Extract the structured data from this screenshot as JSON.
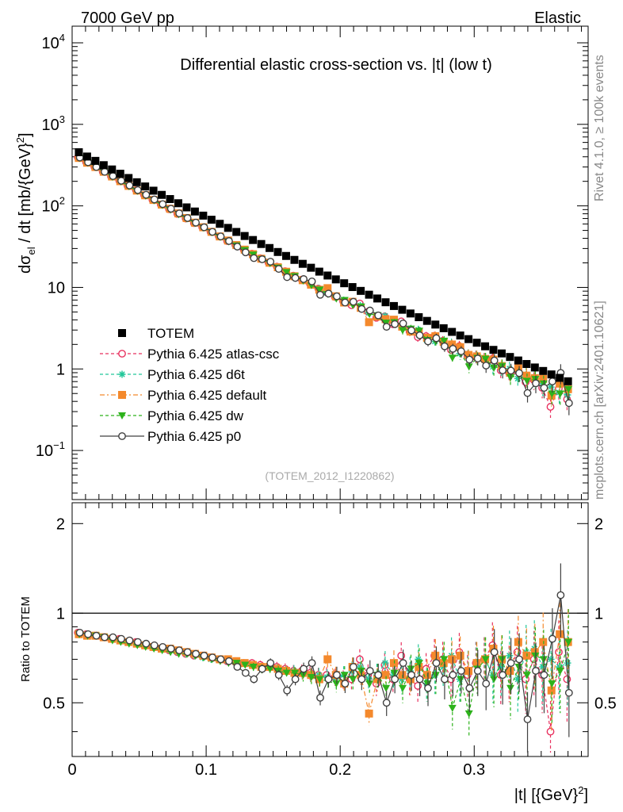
{
  "header": {
    "left": "7000 GeV pp",
    "right": "Elastic"
  },
  "side": {
    "rivet": "Rivet 4.1.0, ≥ 100k events",
    "mcplots": "mcplots.cern.ch [arXiv:2401.10621]"
  },
  "colors": {
    "totem": "#000000",
    "atlas_csc": "#e8315f",
    "d6t": "#23c79a",
    "default": "#f4892c",
    "dw": "#2db21b",
    "p0": "#404040"
  },
  "chart_data": [
    {
      "type": "scatter",
      "title": "Differential elastic cross-section vs. |t| (low t)",
      "watermark": "(TOTEM_2012_I1220862)",
      "ylabel_main": "dσ",
      "ylabel_sub": "el",
      "ylabel_rest": " / dt [mb/{GeV}",
      "ylabel_sup": "2",
      "ylabel_end": "]",
      "yscale": "log",
      "ylim": [
        0.025,
        16000
      ],
      "xlim": [
        0,
        0.385
      ],
      "ytick_labels": [
        {
          "base": "10",
          "exp": "4"
        },
        {
          "base": "10",
          "exp": "3"
        },
        {
          "base": "10",
          "exp": "2"
        },
        {
          "base": "10",
          "exp": ""
        },
        {
          "base": "1",
          "exp": ""
        },
        {
          "base": "10",
          "exp": "−1"
        }
      ],
      "legend": [
        {
          "label": "TOTEM",
          "key": "totem",
          "marker": "square-filled",
          "line": "none"
        },
        {
          "label": "Pythia 6.425 atlas-csc",
          "key": "atlas_csc",
          "marker": "circle-open",
          "line": "dashed"
        },
        {
          "label": "Pythia 6.425 d6t",
          "key": "d6t",
          "marker": "star",
          "line": "dashed"
        },
        {
          "label": "Pythia 6.425 default",
          "key": "default",
          "marker": "square-filled",
          "line": "dashdot"
        },
        {
          "label": "Pythia 6.425 dw",
          "key": "dw",
          "marker": "triangle-down",
          "line": "dashed"
        },
        {
          "label": "Pythia 6.425 p0",
          "key": "p0",
          "marker": "circle-open",
          "line": "solid"
        }
      ],
      "totem_model": {
        "A": 503,
        "B": 19.9,
        "C": 5.8,
        "t_min": 0.005,
        "t_max": 0.37,
        "n_points": 60
      },
      "mc_series": [
        {
          "key": "atlas_csc",
          "name": "Pythia 6.425 atlas-csc",
          "ratio": [
            0.86,
            0.85,
            0.84,
            0.83,
            0.82,
            0.82,
            0.8,
            0.8,
            0.78,
            0.77,
            0.76,
            0.75,
            0.74,
            0.73,
            0.72,
            0.72,
            0.71,
            0.7,
            0.69,
            0.69,
            0.68,
            0.68,
            0.67,
            0.66,
            0.66,
            0.65,
            0.64,
            0.64,
            0.63,
            0.62,
            0.62,
            0.61,
            0.6,
            0.6,
            0.7,
            0.62,
            0.58,
            0.67,
            0.6,
            0.72,
            0.6,
            0.57,
            0.65,
            0.72,
            0.7,
            0.6,
            0.74,
            0.62,
            0.68,
            0.7,
            0.78,
            0.62,
            0.64,
            0.74,
            0.6,
            0.7,
            0.62,
            0.4,
            0.74,
            0.6
          ]
        },
        {
          "key": "d6t",
          "name": "Pythia 6.425 d6t",
          "ratio": [
            0.85,
            0.85,
            0.84,
            0.83,
            0.82,
            0.81,
            0.8,
            0.79,
            0.78,
            0.77,
            0.76,
            0.75,
            0.74,
            0.73,
            0.72,
            0.71,
            0.7,
            0.7,
            0.69,
            0.68,
            0.68,
            0.67,
            0.66,
            0.66,
            0.65,
            0.64,
            0.64,
            0.63,
            0.62,
            0.62,
            0.61,
            0.6,
            0.62,
            0.64,
            0.66,
            0.6,
            0.62,
            0.68,
            0.62,
            0.6,
            0.64,
            0.7,
            0.58,
            0.62,
            0.66,
            0.72,
            0.6,
            0.64,
            0.68,
            0.7,
            0.62,
            0.66,
            0.72,
            0.6,
            0.74,
            0.76,
            0.66,
            0.7,
            0.66,
            0.68
          ]
        },
        {
          "key": "default",
          "name": "Pythia 6.425 default",
          "ratio": [
            0.85,
            0.84,
            0.84,
            0.83,
            0.82,
            0.81,
            0.8,
            0.79,
            0.78,
            0.77,
            0.76,
            0.76,
            0.75,
            0.74,
            0.73,
            0.72,
            0.71,
            0.7,
            0.7,
            0.69,
            0.68,
            0.67,
            0.66,
            0.66,
            0.65,
            0.64,
            0.63,
            0.63,
            0.62,
            0.6,
            0.7,
            0.62,
            0.58,
            0.66,
            0.62,
            0.46,
            0.6,
            0.62,
            0.68,
            0.62,
            0.6,
            0.66,
            0.62,
            0.72,
            0.68,
            0.7,
            0.72,
            0.64,
            0.68,
            0.7,
            0.76,
            0.7,
            0.64,
            0.8,
            0.72,
            0.74,
            0.8,
            0.55,
            0.85,
            0.8
          ]
        },
        {
          "key": "dw",
          "name": "Pythia 6.425 dw",
          "ratio": [
            0.85,
            0.84,
            0.84,
            0.83,
            0.81,
            0.8,
            0.79,
            0.78,
            0.77,
            0.76,
            0.75,
            0.74,
            0.73,
            0.73,
            0.72,
            0.71,
            0.7,
            0.69,
            0.68,
            0.68,
            0.67,
            0.66,
            0.65,
            0.65,
            0.64,
            0.63,
            0.63,
            0.62,
            0.61,
            0.6,
            0.59,
            0.58,
            0.62,
            0.6,
            0.64,
            0.58,
            0.62,
            0.56,
            0.63,
            0.56,
            0.65,
            0.68,
            0.58,
            0.62,
            0.7,
            0.48,
            0.6,
            0.46,
            0.65,
            0.7,
            0.6,
            0.7,
            0.56,
            0.66,
            0.62,
            0.72,
            0.7,
            0.58,
            0.64,
            0.8
          ]
        },
        {
          "key": "p0",
          "name": "Pythia 6.425 p0",
          "ratio": [
            0.86,
            0.85,
            0.84,
            0.83,
            0.83,
            0.82,
            0.81,
            0.8,
            0.79,
            0.78,
            0.77,
            0.76,
            0.75,
            0.74,
            0.73,
            0.72,
            0.71,
            0.7,
            0.69,
            0.66,
            0.63,
            0.6,
            0.65,
            0.68,
            0.62,
            0.55,
            0.6,
            0.65,
            0.68,
            0.52,
            0.6,
            0.62,
            0.58,
            0.66,
            0.6,
            0.64,
            0.62,
            0.5,
            0.6,
            0.68,
            0.62,
            0.6,
            0.56,
            0.68,
            0.6,
            0.62,
            0.64,
            0.56,
            0.64,
            0.58,
            0.74,
            0.62,
            0.68,
            0.7,
            0.44,
            0.64,
            0.62,
            0.82,
            1.15,
            0.54
          ]
        }
      ],
      "ratio_panel": {
        "ylabel": "Ratio to TOTEM",
        "ylim": [
          0.33,
          2.35
        ],
        "yscale": "log",
        "ytick_labels": [
          "2",
          "1",
          "0.5"
        ],
        "reference": 1
      },
      "xlabel": "|t|  [{GeV}",
      "xlabel_sup": "2",
      "xlabel_end": "]",
      "xtick_labels": [
        "0",
        "0.1",
        "0.2",
        "0.3"
      ]
    }
  ]
}
